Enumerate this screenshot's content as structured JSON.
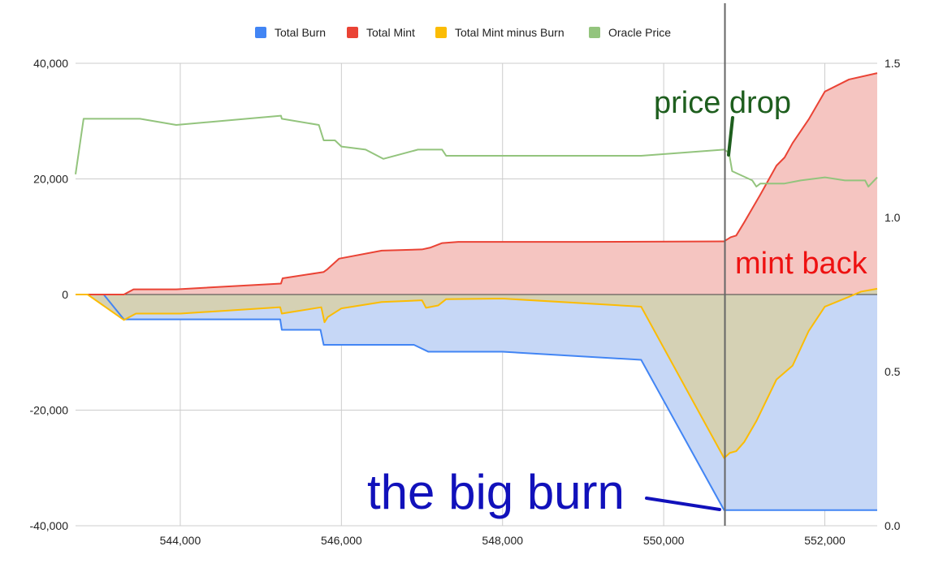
{
  "chart_data": {
    "type": "area",
    "x_ticks": [
      "544,000",
      "546,000",
      "548,000",
      "550,000",
      "552,000"
    ],
    "x_tick_values": [
      544000,
      546000,
      548000,
      550000,
      552000
    ],
    "y_left_ticks": [
      "40,000",
      "20,000",
      "0",
      "-20,000",
      "-40,000"
    ],
    "y_left_tick_values": [
      40000,
      20000,
      0,
      -20000,
      -40000
    ],
    "y_right_ticks": [
      "1.5",
      "1.0",
      "0.5",
      "0.0"
    ],
    "y_right_tick_values": [
      1.5,
      1.0,
      0.5,
      0.0
    ],
    "xlim": [
      542700,
      552650
    ],
    "ylim_left": [
      -40000,
      40000
    ],
    "ylim_right": [
      0,
      1.5
    ],
    "grid": true,
    "legend_position": "top-center",
    "vertical_marker_x": 550760,
    "series": [
      {
        "name": "Total Burn",
        "axis": "left",
        "color": "#4285f4",
        "fill": "#c6d7f6",
        "x": [
          542700,
          543050,
          543300,
          545240,
          545260,
          545740,
          545780,
          545790,
          546900,
          547080,
          548000,
          549720,
          550750,
          552650
        ],
        "y": [
          0,
          0,
          -4300,
          -4300,
          -6100,
          -6100,
          -8700,
          -8700,
          -8700,
          -9900,
          -9900,
          -11300,
          -37300,
          -37300
        ]
      },
      {
        "name": "Total Mint",
        "axis": "left",
        "color": "#ea4335",
        "fill": "#f5c5c1",
        "x": [
          542700,
          543300,
          543420,
          543950,
          545250,
          545270,
          545780,
          545820,
          545970,
          546500,
          547000,
          547100,
          547250,
          547450,
          548000,
          549000,
          550750,
          550830,
          550900,
          551000,
          551200,
          551400,
          551500,
          551600,
          551800,
          552000,
          552300,
          552650
        ],
        "y": [
          0,
          0,
          900,
          900,
          1900,
          2800,
          3900,
          4300,
          6200,
          7600,
          7800,
          8100,
          8900,
          9100,
          9100,
          9100,
          9200,
          9900,
          10200,
          12500,
          17300,
          22300,
          23700,
          26200,
          30300,
          35100,
          37200,
          38300
        ]
      },
      {
        "name": "Total Mint minus Burn",
        "axis": "left",
        "color": "#fbbc04",
        "fill": "#d5d1b4",
        "x": [
          542700,
          542850,
          543300,
          543450,
          544000,
          545240,
          545260,
          545750,
          545790,
          545830,
          546000,
          546500,
          547000,
          547050,
          547200,
          547300,
          548000,
          549720,
          550750,
          550820,
          550900,
          551000,
          551150,
          551400,
          551600,
          551800,
          552000,
          552300,
          552450,
          552650
        ],
        "y": [
          0,
          0,
          -4400,
          -3300,
          -3300,
          -2200,
          -3300,
          -2200,
          -4800,
          -3900,
          -2400,
          -1300,
          -1000,
          -2300,
          -1900,
          -800,
          -700,
          -2100,
          -28300,
          -27400,
          -27100,
          -25500,
          -21900,
          -14700,
          -12300,
          -6300,
          -2100,
          -400,
          500,
          1000
        ]
      },
      {
        "name": "Oracle Price",
        "axis": "right",
        "color": "#93c47d",
        "x": [
          542700,
          542800,
          543500,
          543950,
          545250,
          545260,
          545720,
          545780,
          545800,
          545920,
          546000,
          546300,
          546520,
          546950,
          547250,
          547300,
          547620,
          548000,
          549720,
          550750,
          550810,
          550850,
          551100,
          551150,
          551200,
          551500,
          551700,
          552000,
          552250,
          552380,
          552500,
          552540,
          552650
        ],
        "y": [
          1.14,
          1.32,
          1.32,
          1.3,
          1.33,
          1.32,
          1.3,
          1.25,
          1.25,
          1.25,
          1.23,
          1.22,
          1.19,
          1.22,
          1.22,
          1.2,
          1.2,
          1.2,
          1.2,
          1.22,
          1.21,
          1.15,
          1.12,
          1.1,
          1.11,
          1.11,
          1.12,
          1.13,
          1.12,
          1.12,
          1.12,
          1.1,
          1.13
        ]
      }
    ]
  },
  "annotations": {
    "price_drop": "price drop",
    "mint_back": "mint back",
    "big_burn": "the big burn"
  },
  "colors": {
    "price_drop": "#1e5e1e",
    "mint_back": "#ee1111",
    "big_burn": "#1111bb",
    "marker": "#666666",
    "grid": "#cccccc",
    "zero_line": "#444444"
  }
}
